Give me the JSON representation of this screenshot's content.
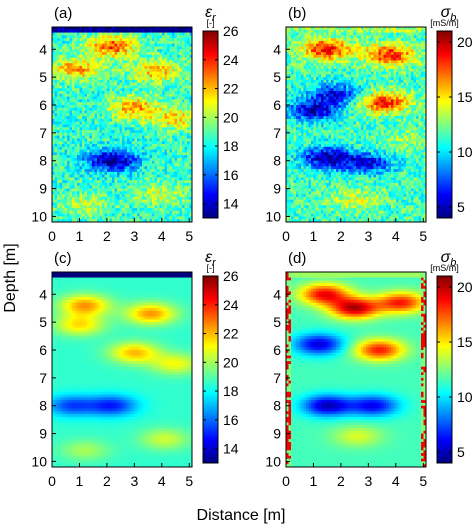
{
  "figure": {
    "ylabel": "Depth [m]",
    "xlabel": "Distance [m]"
  },
  "colors": {
    "jet": [
      "#00007f",
      "#0000ff",
      "#0080ff",
      "#00ffff",
      "#80ff80",
      "#ffff00",
      "#ff8000",
      "#ff0000",
      "#7f0000"
    ]
  },
  "chart_data": [
    {
      "type": "heatmap",
      "panel_label": "(a)",
      "x_ticks": [
        0,
        1,
        2,
        3,
        4,
        5
      ],
      "y_ticks": [
        4,
        5,
        6,
        7,
        8,
        9,
        10
      ],
      "xlim": [
        0,
        5.1
      ],
      "ylim": [
        10.2,
        3.2
      ],
      "colorbar": {
        "symbol": "εr",
        "unit": "[-]",
        "ticks": [
          14,
          16,
          18,
          20,
          22,
          24,
          26
        ],
        "range": [
          13,
          26
        ]
      },
      "field": "smoothed_noisy",
      "features": [
        {
          "x": 2.2,
          "y": 3.9,
          "value": 24.5
        },
        {
          "x": 0.9,
          "y": 4.7,
          "value": 23.5
        },
        {
          "x": 3.8,
          "y": 4.8,
          "value": 23
        },
        {
          "x": 3.0,
          "y": 6.1,
          "value": 23.5
        },
        {
          "x": 4.5,
          "y": 6.5,
          "value": 22.5
        },
        {
          "x": 2.2,
          "y": 8.0,
          "value": 14
        },
        {
          "x": 4.0,
          "y": 9.2,
          "value": 21.5
        },
        {
          "x": 1.2,
          "y": 9.6,
          "value": 21.5
        }
      ],
      "top_band_value": 13
    },
    {
      "type": "heatmap",
      "panel_label": "(b)",
      "x_ticks": [
        0,
        1,
        2,
        3,
        4,
        5
      ],
      "y_ticks": [
        4,
        5,
        6,
        7,
        8,
        9,
        10
      ],
      "xlim": [
        0,
        5.1
      ],
      "ylim": [
        10.2,
        3.2
      ],
      "colorbar": {
        "symbol": "σb",
        "unit": "[mS/m]",
        "ticks": [
          5,
          10,
          15,
          20
        ],
        "range": [
          4,
          21
        ]
      },
      "field": "smoothed_noisy",
      "features": [
        {
          "x": 1.5,
          "y": 4.0,
          "value": 20
        },
        {
          "x": 3.8,
          "y": 4.2,
          "value": 19.5
        },
        {
          "x": 1.0,
          "y": 6.2,
          "value": 6
        },
        {
          "x": 1.8,
          "y": 5.6,
          "value": 7
        },
        {
          "x": 3.6,
          "y": 5.9,
          "value": 19.5
        },
        {
          "x": 1.5,
          "y": 7.9,
          "value": 5.5
        },
        {
          "x": 3.0,
          "y": 8.1,
          "value": 7
        },
        {
          "x": 4.5,
          "y": 7.3,
          "value": 14
        },
        {
          "x": 2.5,
          "y": 9.4,
          "value": 15
        }
      ],
      "top_band_value": 13
    },
    {
      "type": "heatmap",
      "panel_label": "(c)",
      "x_ticks": [
        0,
        1,
        2,
        3,
        4,
        5
      ],
      "y_ticks": [
        4,
        5,
        6,
        7,
        8,
        9,
        10
      ],
      "xlim": [
        0,
        5.1
      ],
      "ylim": [
        10.2,
        3.2
      ],
      "colorbar": {
        "symbol": "εr",
        "unit": "[-]",
        "ticks": [
          14,
          16,
          18,
          20,
          22,
          24,
          26
        ],
        "range": [
          13,
          26
        ]
      },
      "field": "smooth",
      "features": [
        {
          "x": 1.2,
          "y": 4.4,
          "value": 23.5
        },
        {
          "x": 3.6,
          "y": 4.7,
          "value": 23.5
        },
        {
          "x": 1.0,
          "y": 5.1,
          "value": 22.5
        },
        {
          "x": 3.0,
          "y": 6.1,
          "value": 23
        },
        {
          "x": 4.5,
          "y": 6.5,
          "value": 22
        },
        {
          "x": 2.2,
          "y": 8.0,
          "value": 16
        },
        {
          "x": 0.7,
          "y": 8.0,
          "value": 16.5
        },
        {
          "x": 4.1,
          "y": 9.2,
          "value": 21.5
        },
        {
          "x": 1.2,
          "y": 9.6,
          "value": 21
        }
      ],
      "top_band_value": 13
    },
    {
      "type": "heatmap",
      "panel_label": "(d)",
      "x_ticks": [
        0,
        1,
        2,
        3,
        4,
        5
      ],
      "y_ticks": [
        4,
        5,
        6,
        7,
        8,
        9,
        10
      ],
      "xlim": [
        0,
        5.1
      ],
      "ylim": [
        10.2,
        3.2
      ],
      "colorbar": {
        "symbol": "σb",
        "unit": "[mS/m]",
        "ticks": [
          5,
          10,
          15,
          20
        ],
        "range": [
          4,
          21
        ]
      },
      "field": "smooth",
      "features": [
        {
          "x": 1.4,
          "y": 4.0,
          "value": 20
        },
        {
          "x": 2.5,
          "y": 4.5,
          "value": 21
        },
        {
          "x": 4.2,
          "y": 4.3,
          "value": 19.5
        },
        {
          "x": 3.4,
          "y": 6.0,
          "value": 19.5
        },
        {
          "x": 1.2,
          "y": 5.8,
          "value": 6.5
        },
        {
          "x": 1.5,
          "y": 8.0,
          "value": 6
        },
        {
          "x": 3.2,
          "y": 8.0,
          "value": 7
        },
        {
          "x": 2.6,
          "y": 9.1,
          "value": 15
        }
      ],
      "top_band_value": 13
    }
  ]
}
